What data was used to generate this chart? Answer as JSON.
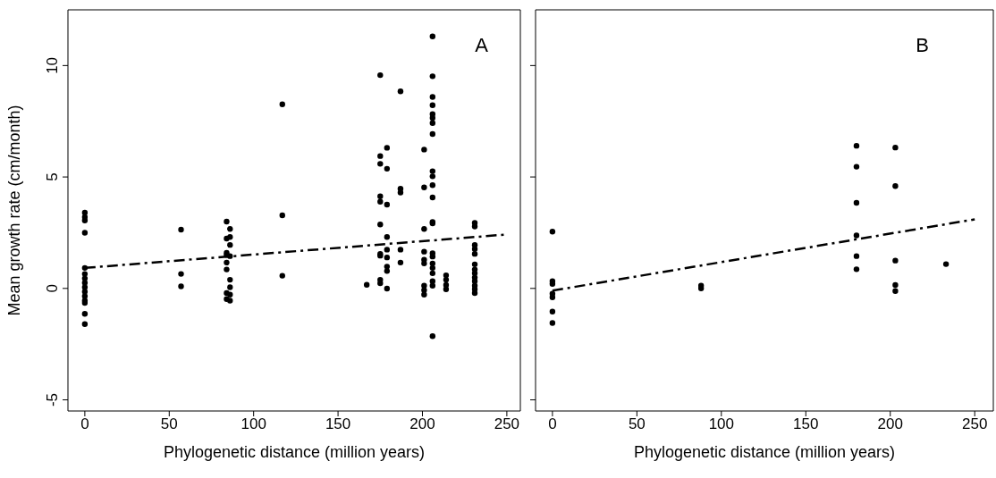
{
  "chart_data": [
    {
      "type": "scatter",
      "xlabel": "Phylogenetic distance (million years)",
      "ylabel": "Mean growth rate (cm/month)",
      "annotations": [
        "A"
      ],
      "xlim": [
        -10,
        258
      ],
      "xticks": [
        0,
        50,
        100,
        150,
        200,
        250
      ],
      "ylim": [
        -5.5,
        12.5
      ],
      "yticks": [
        -5,
        0,
        5,
        10
      ],
      "marker": "circle",
      "series": [
        {
          "type": "scatter",
          "color": "#000000",
          "x": [
            0,
            0,
            0,
            0,
            0,
            0,
            0,
            0,
            0,
            0,
            0,
            0,
            0,
            0,
            0,
            57,
            57,
            57,
            84,
            86,
            86,
            84,
            86,
            84,
            84,
            86,
            84,
            84,
            86,
            86,
            84,
            86,
            84,
            86,
            117,
            117,
            117,
            167,
            175,
            175,
            175,
            175,
            175,
            175,
            175,
            175,
            175,
            175,
            179,
            179,
            179,
            179,
            179,
            179,
            179,
            179,
            179,
            187,
            187,
            187,
            187,
            187,
            201,
            201,
            201,
            201,
            201,
            201,
            201,
            201,
            201,
            206,
            206,
            206,
            206,
            206,
            206,
            206,
            206,
            206,
            206,
            206,
            206,
            206,
            206,
            206,
            206,
            206,
            206,
            206,
            206,
            206,
            206,
            214,
            214,
            214,
            214,
            231,
            231,
            231,
            231,
            231,
            231,
            231,
            231,
            231,
            231,
            231,
            231,
            231
          ],
          "values": [
            3.4,
            3.2,
            3.05,
            2.5,
            0.92,
            0.65,
            0.45,
            0.25,
            0.05,
            -0.15,
            -0.35,
            -0.55,
            -0.65,
            -1.14,
            -1.6,
            2.64,
            0.65,
            0.09,
            3.0,
            2.67,
            2.31,
            2.24,
            1.95,
            1.6,
            1.5,
            1.45,
            1.16,
            0.85,
            0.39,
            0.05,
            -0.21,
            -0.28,
            -0.48,
            -0.55,
            8.26,
            3.28,
            0.57,
            0.16,
            9.57,
            5.94,
            5.59,
            4.13,
            3.89,
            2.87,
            1.55,
            1.47,
            0.39,
            0.23,
            6.31,
            5.37,
            3.76,
            2.31,
            1.74,
            1.39,
            0.98,
            0.78,
            -0.01,
            8.84,
            4.47,
            4.3,
            1.74,
            1.16,
            6.23,
            4.53,
            2.67,
            1.65,
            1.29,
            1.12,
            0.12,
            -0.08,
            -0.28,
            11.31,
            9.52,
            8.59,
            8.22,
            7.82,
            7.65,
            7.42,
            6.93,
            5.26,
            5.03,
            4.63,
            4.08,
            2.98,
            2.92,
            1.58,
            1.43,
            1.12,
            0.92,
            0.68,
            0.32,
            0.12,
            -2.14,
            0.59,
            0.39,
            0.15,
            -0.04,
            2.94,
            2.78,
            1.95,
            1.77,
            1.55,
            1.08,
            0.85,
            0.68,
            0.49,
            0.32,
            0.12,
            -0.04,
            -0.21
          ]
        },
        {
          "type": "line",
          "color": "#000000",
          "line_style": "dashed",
          "marker": "none",
          "x": [
            0,
            250
          ],
          "values": [
            0.92,
            2.42
          ]
        }
      ]
    },
    {
      "type": "scatter",
      "xlabel": "Phylogenetic distance (million years)",
      "annotations": [
        "B"
      ],
      "xlim": [
        -10,
        261
      ],
      "xticks": [
        0,
        50,
        100,
        150,
        200,
        250
      ],
      "ylim": [
        -5.5,
        12.5
      ],
      "yticks": [
        -5,
        0,
        5,
        10
      ],
      "tick_labels": "x",
      "marker": "circle",
      "series": [
        {
          "type": "scatter",
          "color": "#000000",
          "x": [
            0,
            0,
            0,
            0,
            0,
            0,
            0,
            88,
            88,
            180,
            180,
            180,
            180,
            180,
            180,
            203,
            203,
            203,
            203,
            203,
            233
          ],
          "values": [
            2.55,
            0.32,
            0.2,
            -0.24,
            -0.4,
            -1.04,
            -1.55,
            0.12,
            0,
            6.4,
            5.46,
            3.84,
            2.38,
            1.45,
            0.86,
            6.32,
            4.59,
            1.25,
            0.15,
            -0.12,
            1.09
          ]
        },
        {
          "type": "line",
          "color": "#000000",
          "line_style": "dashed",
          "marker": "none",
          "x": [
            0,
            250
          ],
          "values": [
            -0.1,
            3.1
          ]
        }
      ]
    }
  ]
}
